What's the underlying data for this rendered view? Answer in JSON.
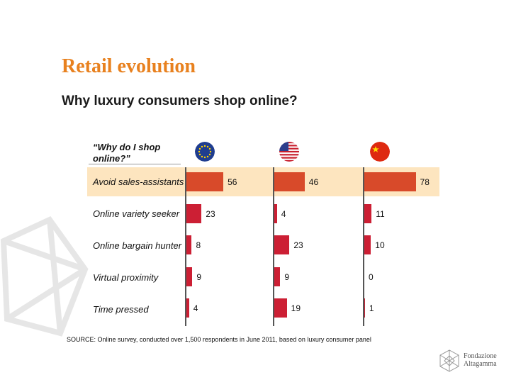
{
  "title": "Retail evolution",
  "subtitle": "Why luxury consumers shop online?",
  "question": [
    "“Why do I shop",
    "online?”"
  ],
  "source": "SOURCE: Online survey, conducted over 1,500 respondents in June 2011, based on luxury consumer panel",
  "logo": {
    "line1": "Fondazione",
    "line2": "Altagamma"
  },
  "colors": {
    "bar": "#cc1f34",
    "highlight_bar": "#d84a2a",
    "highlight_bg": "#fde5bf",
    "title": "#e8811f"
  },
  "flags": [
    "eu-flag-icon",
    "us-flag-icon",
    "china-flag-icon"
  ],
  "chart_data": {
    "type": "bar",
    "orientation": "horizontal",
    "panels": [
      "EU",
      "US",
      "China"
    ],
    "categories": [
      "Avoid sales-assistants",
      "Online variety seeker",
      "Online bargain hunter",
      "Virtual proximity",
      "Time pressed"
    ],
    "series": [
      {
        "values": [
          56,
          23,
          8,
          9,
          4
        ]
      },
      {
        "values": [
          46,
          4,
          23,
          9,
          19
        ]
      },
      {
        "values": [
          78,
          11,
          10,
          0,
          1
        ]
      }
    ],
    "highlighted_category": "Avoid sales-assistants",
    "xlim": [
      0,
      100
    ]
  }
}
